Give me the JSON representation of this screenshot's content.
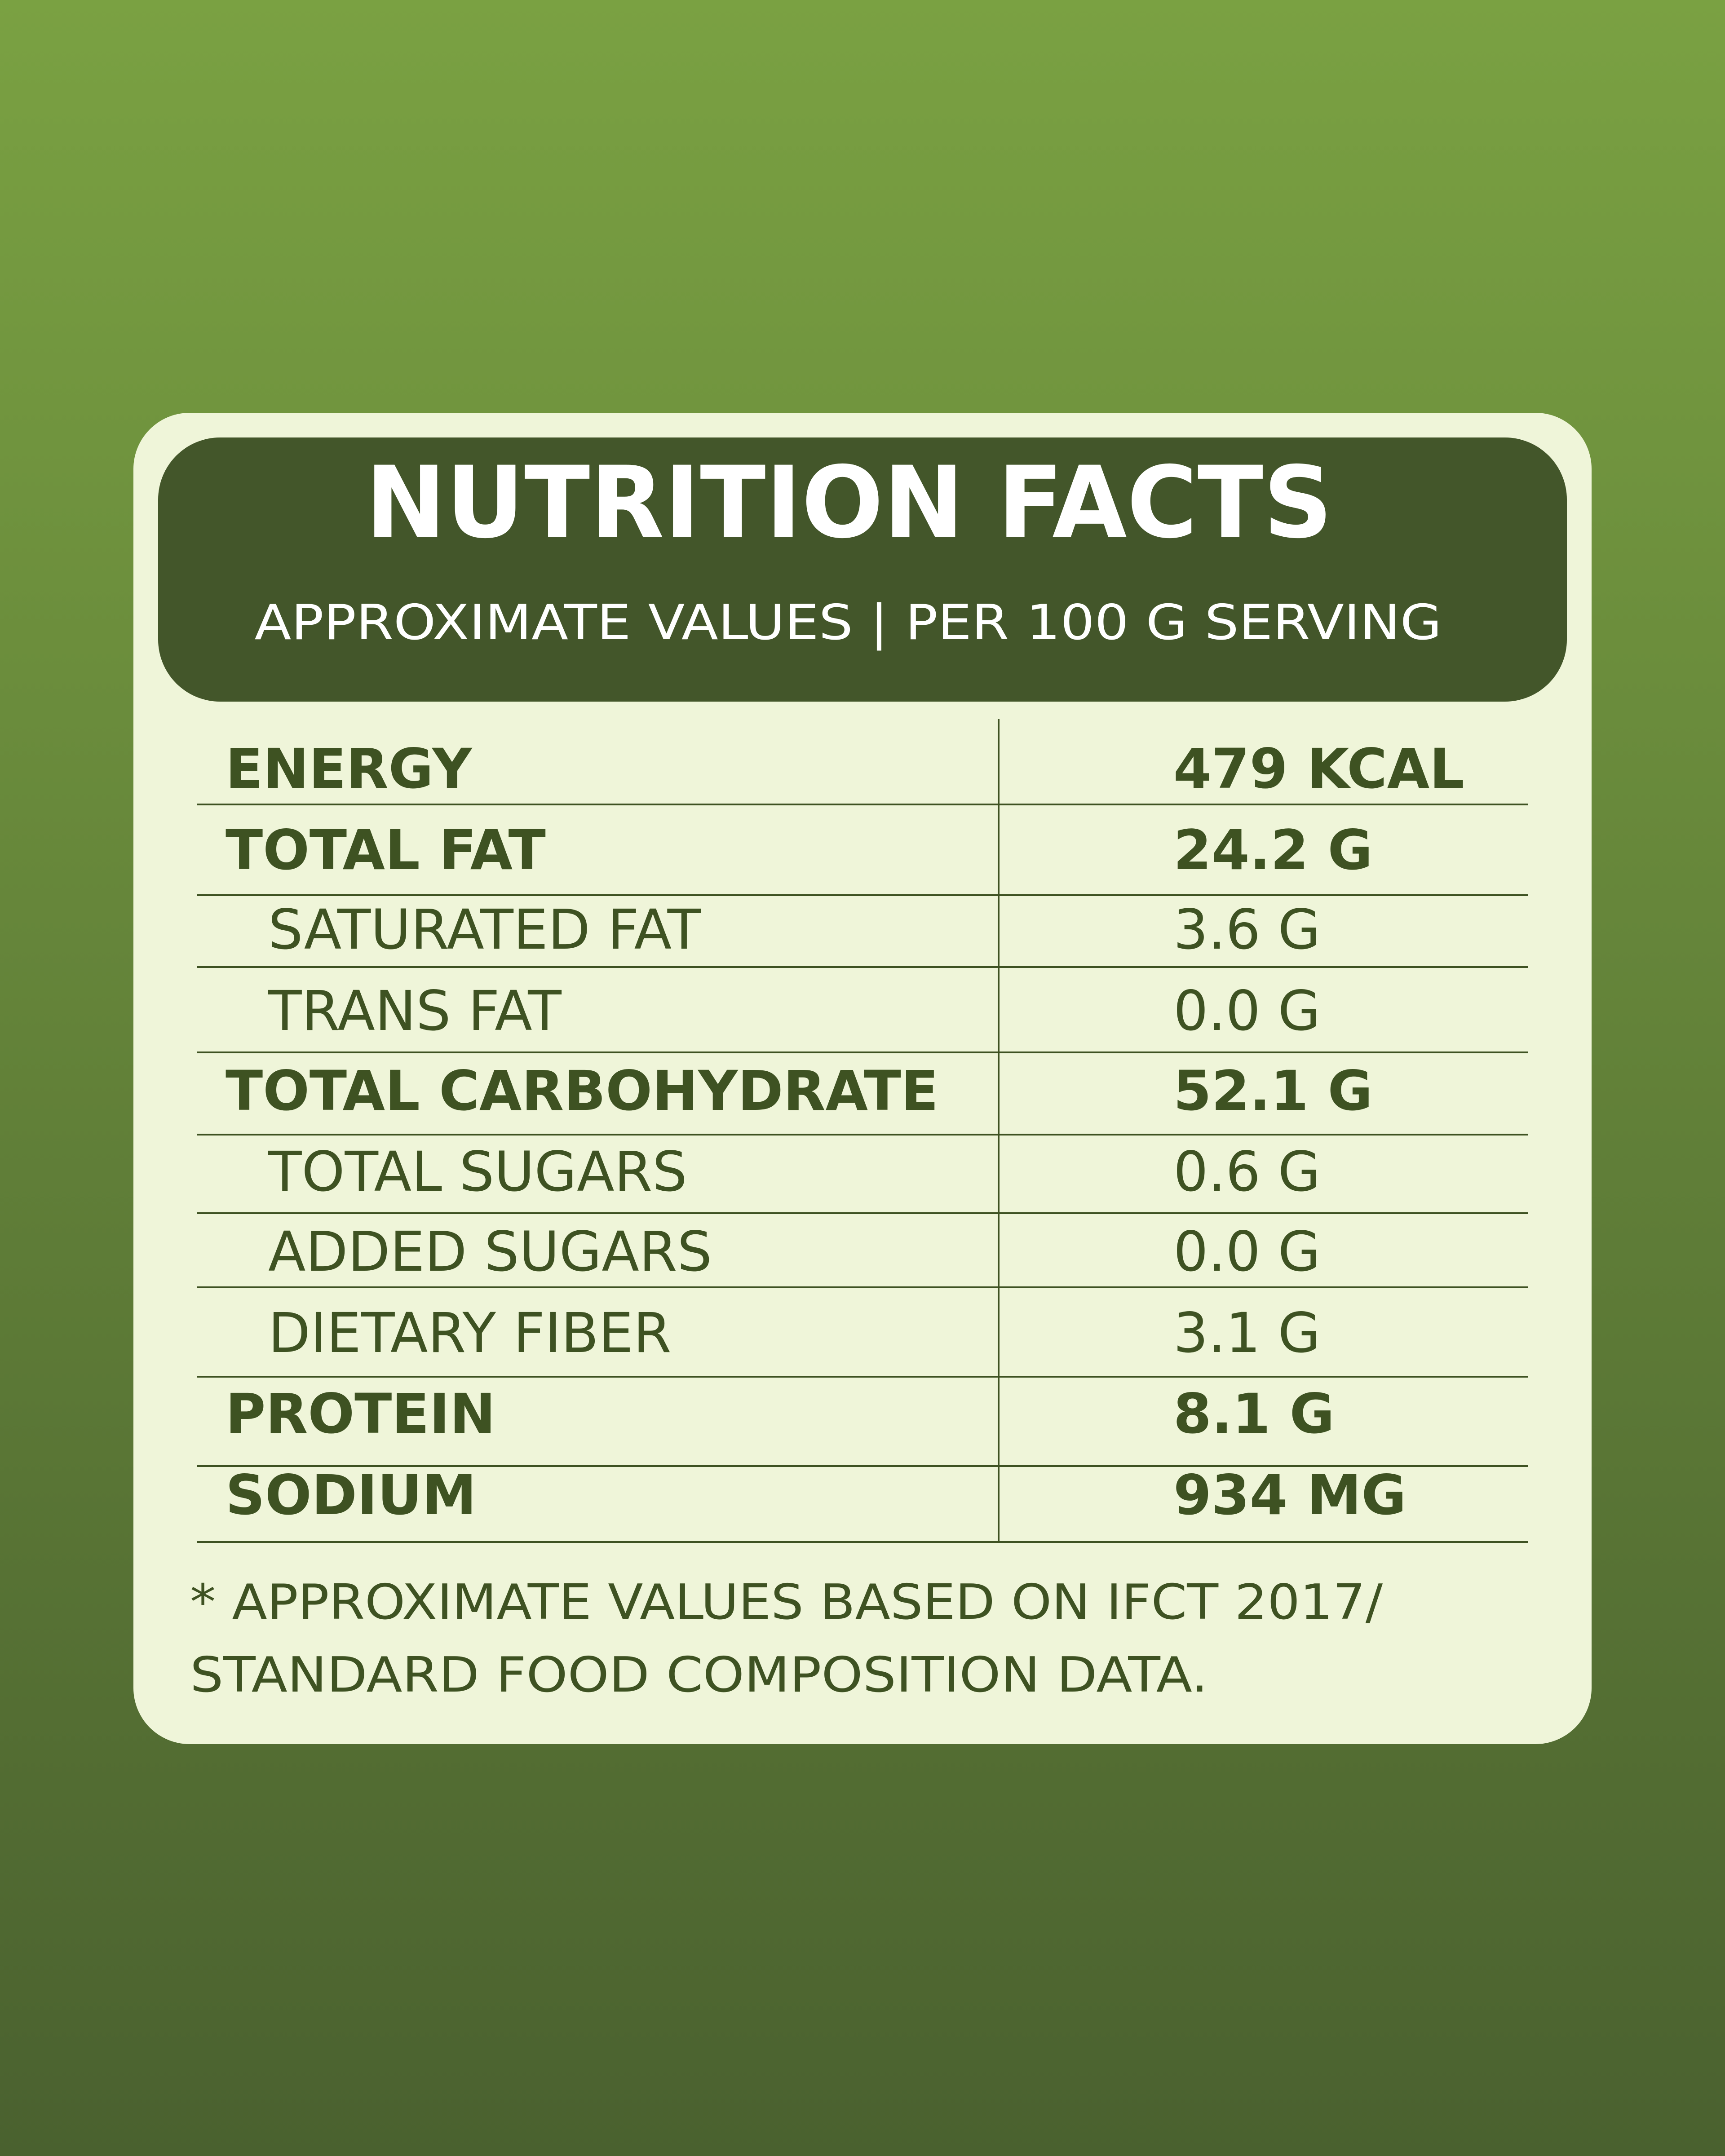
{
  "header": {
    "title": "NUTRITION FACTS",
    "subtitle": "APPROXIMATE VALUES | PER 100 G SERVING"
  },
  "table": {
    "rows": [
      [
        "ENERGY",
        "479 KCAL"
      ],
      [
        "TOTAL FAT",
        "24.2 G"
      ],
      [
        "SATURATED FAT",
        "3.6 G"
      ],
      [
        "TRANS FAT",
        "0.0 G"
      ],
      [
        "TOTAL CARBOHYDRATE",
        "52.1 G"
      ],
      [
        "TOTAL SUGARS",
        "0.6 G"
      ],
      [
        "ADDED SUGARS",
        "0.0 G"
      ],
      [
        "DIETARY FIBER",
        "3.1 G"
      ],
      [
        "PROTEIN",
        "8.1 G"
      ],
      [
        "SODIUM",
        "934 MG"
      ]
    ]
  },
  "footnote": {
    "lines": [
      "* APPROXIMATE VALUES BASED ON IFCT 2017/",
      "STANDARD FOOD COMPOSITION DATA."
    ]
  }
}
